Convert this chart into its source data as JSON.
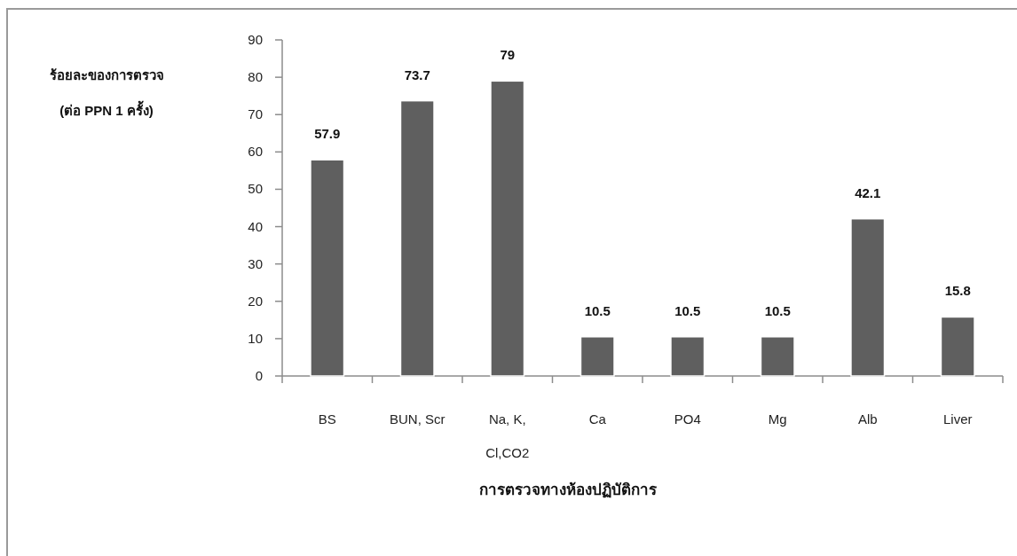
{
  "chart_data": {
    "type": "bar",
    "categories": [
      "BS",
      "BUN, Scr",
      "Na, K, Cl,CO2",
      "Ca",
      "PO4",
      "Mg",
      "Alb",
      "Liver"
    ],
    "values": [
      57.9,
      73.7,
      79,
      10.5,
      10.5,
      10.5,
      42.1,
      15.8
    ],
    "color": "#5f5f5f",
    "ylim": [
      0,
      90
    ],
    "yticks": [
      0,
      10,
      20,
      30,
      40,
      50,
      60,
      70,
      80,
      90
    ],
    "xlabel": "การตรวจทางห้องปฏิบัติการ",
    "ylabel": "ร้อยละของการตรวจ (ต่อ PPN 1 ครั้ง)",
    "data_labels": true
  }
}
